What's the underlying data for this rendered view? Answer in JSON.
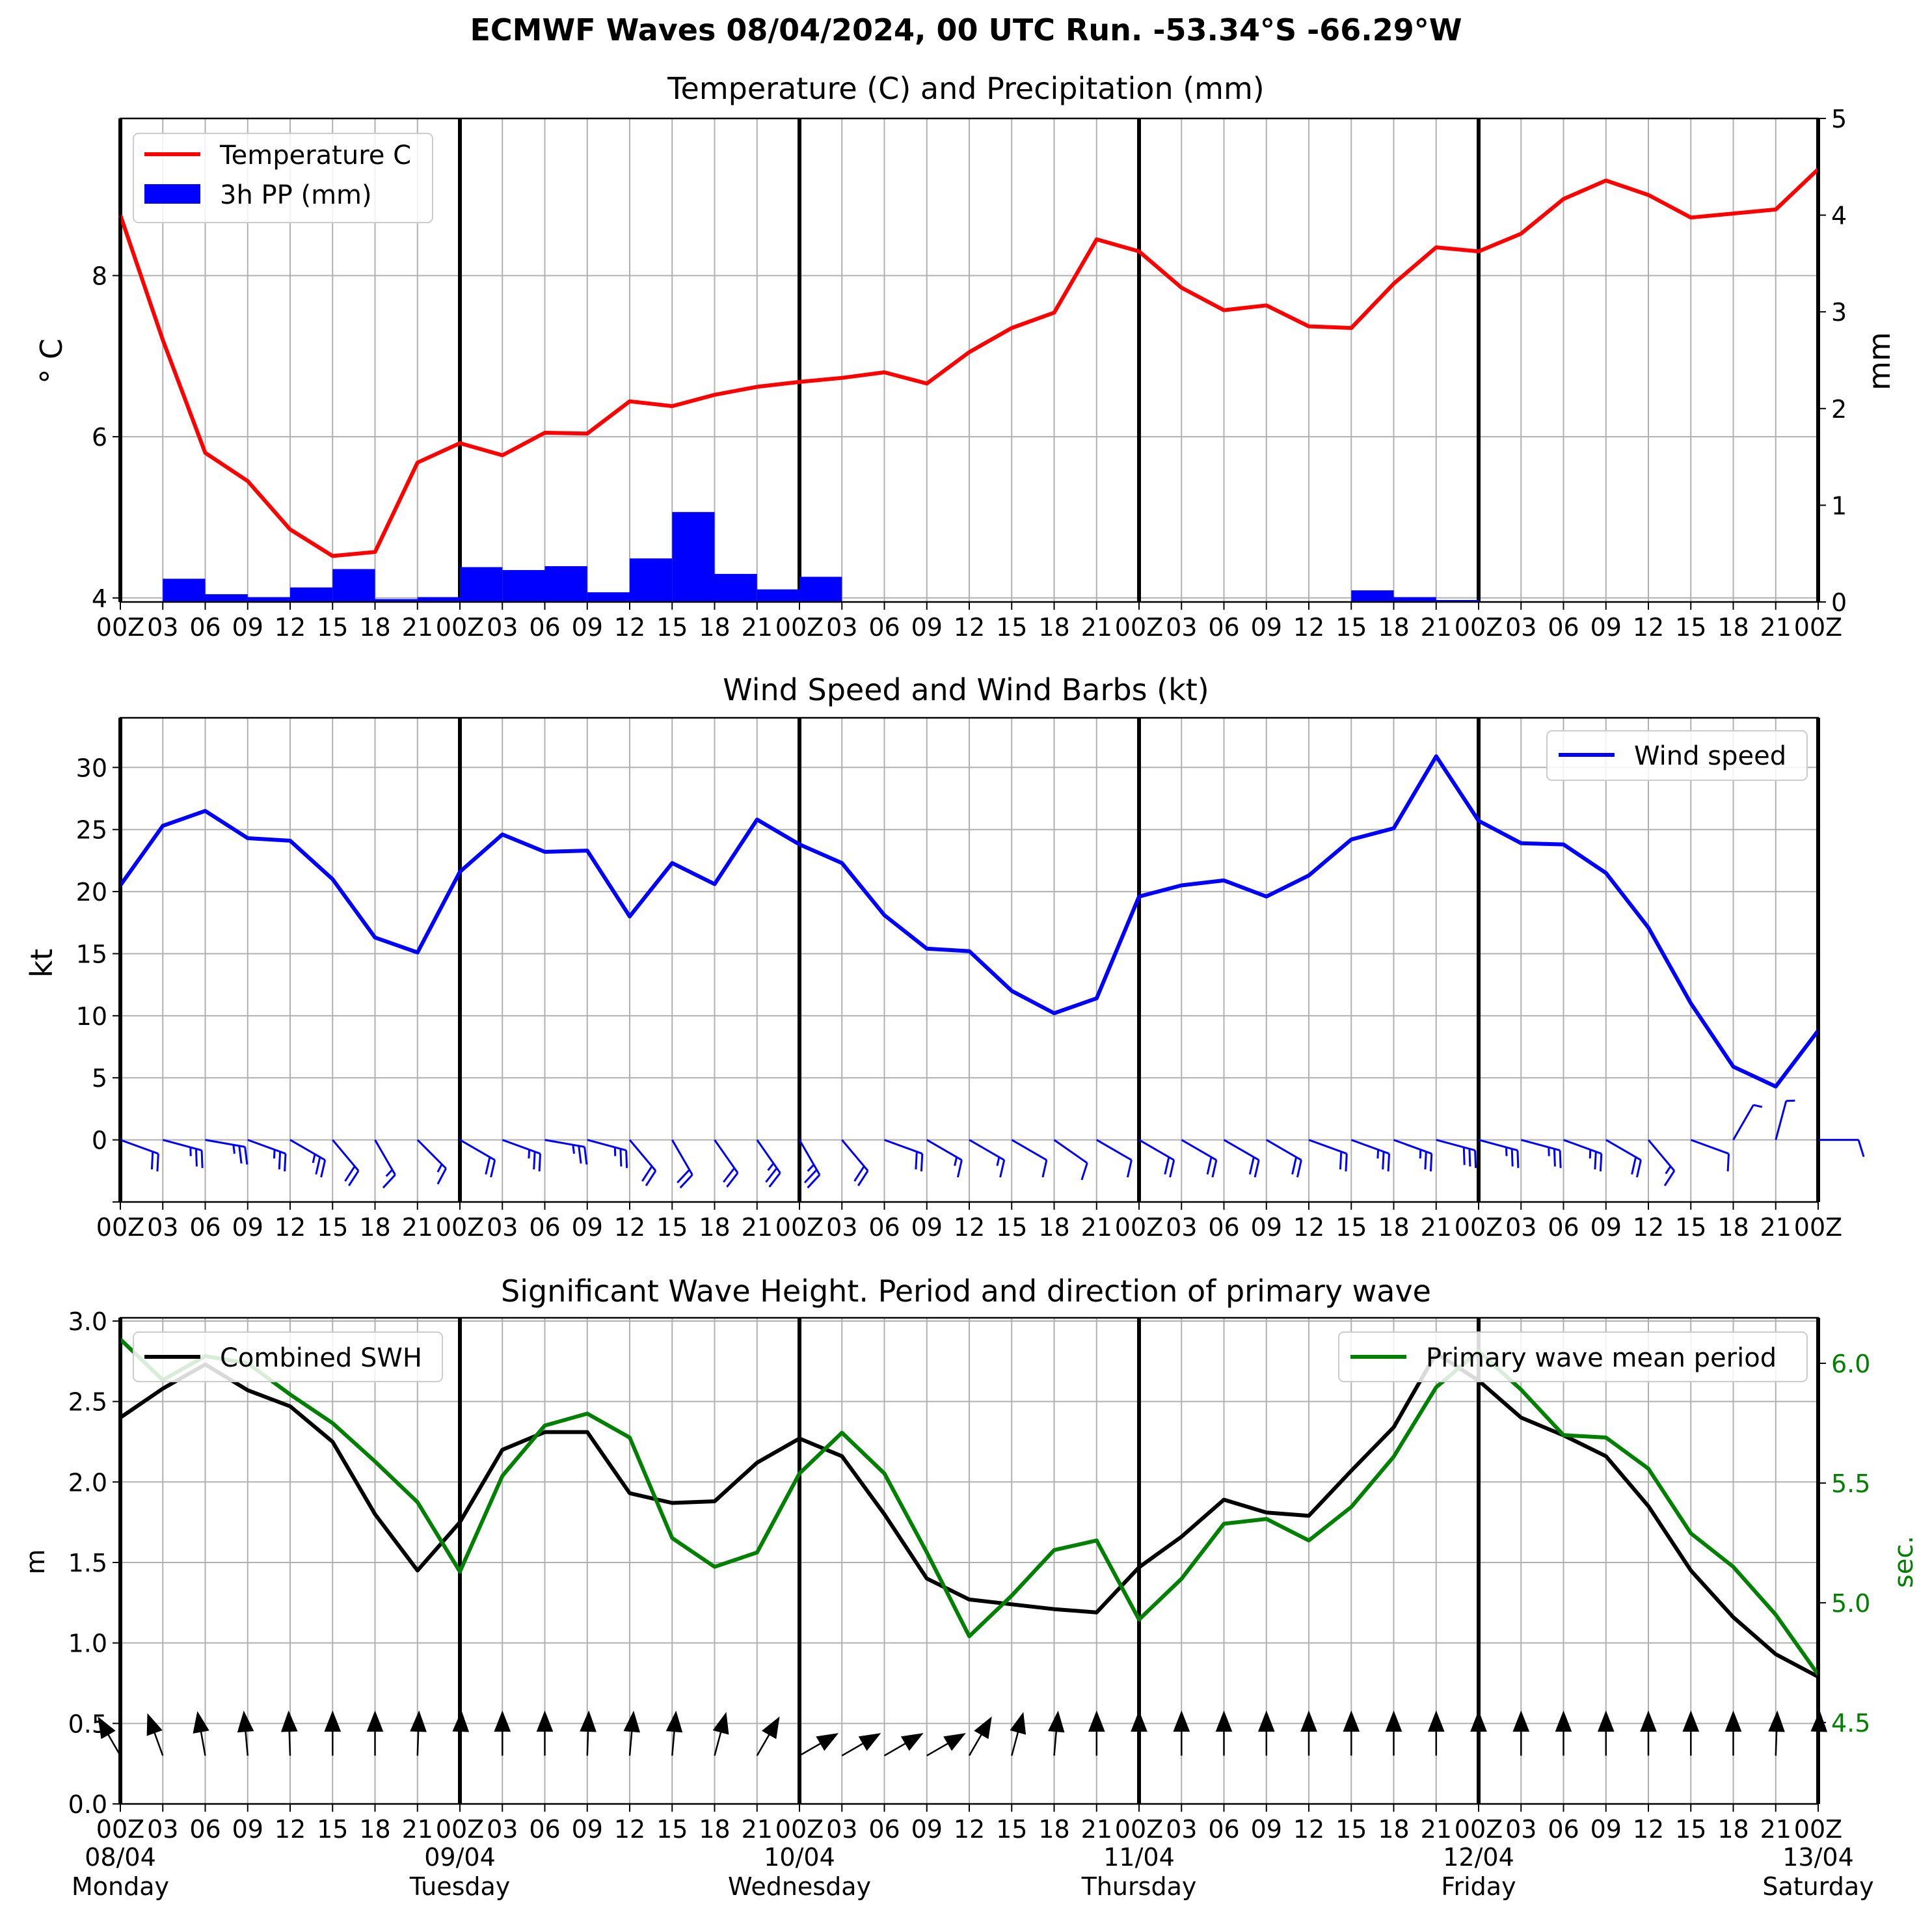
{
  "figure": {
    "suptitle": "ECMWF Waves 08/04/2024, 00 UTC Run. -53.34°S -66.29°W"
  },
  "time_axis": {
    "hour_labels": [
      "00Z",
      "03",
      "06",
      "09",
      "12",
      "15",
      "18",
      "21",
      "00Z",
      "03",
      "06",
      "09",
      "12",
      "15",
      "18",
      "21",
      "00Z",
      "03",
      "06",
      "09",
      "12",
      "15",
      "18",
      "21",
      "00Z",
      "03",
      "06",
      "09",
      "12",
      "15",
      "18",
      "21",
      "00Z",
      "03",
      "06",
      "09",
      "12",
      "15",
      "18",
      "21",
      "00Z"
    ],
    "day_labels": [
      {
        "date": "08/04",
        "day": "Monday"
      },
      {
        "date": "09/04",
        "day": "Tuesday"
      },
      {
        "date": "10/04",
        "day": "Wednesday"
      },
      {
        "date": "11/04",
        "day": "Thursday"
      },
      {
        "date": "12/04",
        "day": "Friday"
      },
      {
        "date": "13/04",
        "day": "Saturday"
      }
    ]
  },
  "colors": {
    "temperature": "#ff0000",
    "precip": "#0000ff",
    "wind": "#0000ff",
    "swh": "#000000",
    "period": "#008000",
    "grid": "#b0b0b0"
  },
  "chart_data": [
    {
      "type": "line",
      "title": "Temperature (C) and Precipitation (mm)",
      "x_hours": [
        0,
        3,
        6,
        9,
        12,
        15,
        18,
        21,
        24,
        27,
        30,
        33,
        36,
        39,
        42,
        45,
        48,
        51,
        54,
        57,
        60,
        63,
        66,
        69,
        72,
        75,
        78,
        81,
        84,
        87,
        90,
        93,
        96,
        99,
        102,
        105,
        108,
        111,
        114,
        117,
        120
      ],
      "ylabel": "$^\\circ$C",
      "ylabel_display": "° C",
      "ylim": [
        3.95,
        9.95
      ],
      "yticks": [
        4,
        6,
        8
      ],
      "y2label": "mm",
      "y2lim": [
        0,
        5
      ],
      "y2ticks": [
        0,
        1,
        2,
        3,
        4,
        5
      ],
      "series": [
        {
          "name": "Temperature C",
          "type": "line",
          "values": [
            8.75,
            7.2,
            5.8,
            5.45,
            4.85,
            4.52,
            4.57,
            5.68,
            5.92,
            5.77,
            6.05,
            6.04,
            6.44,
            6.38,
            6.52,
            6.62,
            6.68,
            6.73,
            6.8,
            6.66,
            7.05,
            7.35,
            7.54,
            8.45,
            8.3,
            7.85,
            7.57,
            7.63,
            7.37,
            7.35,
            7.9,
            8.35,
            8.3,
            8.52,
            8.95,
            9.18,
            9.0,
            8.72,
            8.77,
            8.82,
            9.32
          ]
        },
        {
          "name": "3h PP (mm)",
          "type": "bar",
          "values": [
            0,
            0.24,
            0.08,
            0.05,
            0.15,
            0.34,
            0.03,
            0.05,
            0.36,
            0.33,
            0.37,
            0.1,
            0.45,
            0.93,
            0.29,
            0.13,
            0.26,
            0,
            0,
            0,
            0,
            0,
            0,
            0,
            0,
            0,
            0,
            0,
            0,
            0.12,
            0.05,
            0.02,
            0,
            0,
            0,
            0,
            0,
            0,
            0,
            0
          ]
        }
      ]
    },
    {
      "type": "line",
      "title": "Wind Speed and Wind Barbs (kt)",
      "ylabel": "kt",
      "ylim": [
        -5,
        34
      ],
      "yticks": [
        0,
        5,
        10,
        15,
        20,
        25,
        30
      ],
      "series": [
        {
          "name": "Wind speed",
          "values": [
            20.5,
            25.3,
            26.5,
            24.3,
            24.1,
            21.0,
            16.3,
            15.1,
            21.6,
            24.6,
            23.2,
            23.3,
            18.0,
            22.3,
            20.6,
            25.8,
            23.8,
            22.3,
            18.1,
            15.4,
            15.2,
            12.0,
            10.2,
            11.4,
            19.6,
            20.5,
            20.9,
            19.6,
            21.3,
            24.2,
            25.1,
            30.9,
            25.7,
            23.9,
            23.8,
            21.5,
            17.1,
            11.0,
            5.9,
            4.3,
            8.8
          ]
        }
      ],
      "barbs_dir_deg": [
        290,
        285,
        280,
        290,
        300,
        320,
        330,
        315,
        300,
        290,
        280,
        285,
        320,
        330,
        325,
        325,
        330,
        320,
        290,
        300,
        300,
        300,
        305,
        300,
        300,
        300,
        300,
        300,
        290,
        290,
        290,
        285,
        285,
        285,
        290,
        300,
        320,
        290,
        210,
        195,
        270
      ]
    },
    {
      "type": "line",
      "title": "Significant Wave Height. Period and direction of primary wave",
      "ylabel": "m",
      "ylim": [
        0,
        3.02
      ],
      "yticks": [
        0.0,
        0.5,
        1.0,
        1.5,
        2.0,
        2.5,
        3.0
      ],
      "y2label": "sec.",
      "y2lim": [
        4.16,
        6.19
      ],
      "y2ticks": [
        4.5,
        5.0,
        5.5,
        6.0
      ],
      "series": [
        {
          "name": "Combined SWH",
          "axis": "left",
          "values": [
            2.4,
            2.58,
            2.73,
            2.57,
            2.47,
            2.25,
            1.8,
            1.45,
            1.75,
            2.2,
            2.31,
            2.31,
            1.93,
            1.87,
            1.88,
            2.12,
            2.27,
            2.16,
            1.8,
            1.4,
            1.27,
            1.24,
            1.21,
            1.19,
            1.47,
            1.66,
            1.89,
            1.81,
            1.79,
            2.07,
            2.34,
            2.8,
            2.63,
            2.4,
            2.29,
            2.16,
            1.85,
            1.45,
            1.16,
            0.93,
            0.79
          ]
        },
        {
          "name": "Primary wave mean period",
          "axis": "right",
          "values": [
            6.1,
            5.93,
            6.03,
            6.0,
            5.87,
            5.75,
            5.59,
            5.42,
            5.13,
            5.53,
            5.74,
            5.79,
            5.69,
            5.27,
            5.15,
            5.21,
            5.54,
            5.71,
            5.54,
            5.21,
            4.86,
            5.03,
            5.22,
            5.26,
            4.93,
            5.1,
            5.33,
            5.35,
            5.26,
            5.4,
            5.61,
            5.9,
            6.05,
            5.89,
            5.7,
            5.69,
            5.56,
            5.29,
            5.15,
            4.95,
            4.7
          ]
        }
      ],
      "arrows_dir_deg": [
        150,
        160,
        170,
        175,
        178,
        180,
        180,
        182,
        182,
        180,
        180,
        182,
        185,
        185,
        195,
        210,
        240,
        240,
        240,
        240,
        210,
        195,
        185,
        180,
        180,
        180,
        180,
        180,
        180,
        180,
        180,
        180,
        180,
        180,
        180,
        180,
        180,
        180,
        180,
        182,
        182
      ]
    }
  ]
}
